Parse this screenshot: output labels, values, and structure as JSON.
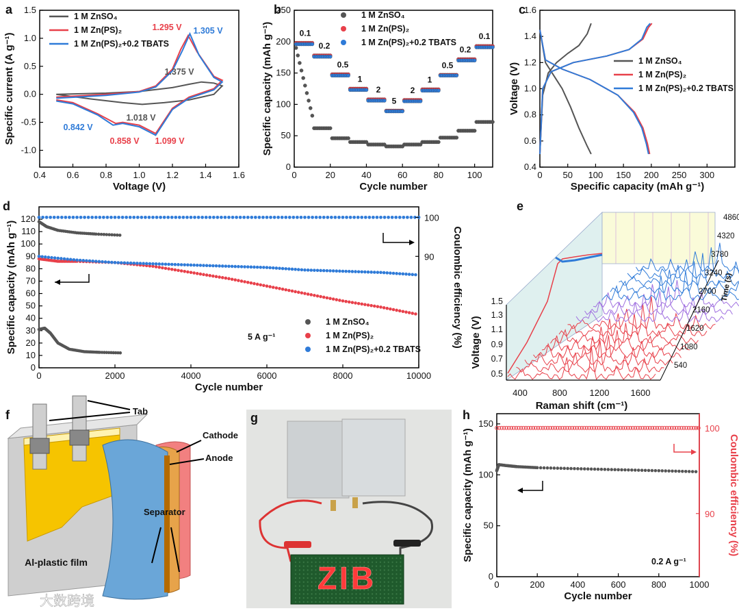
{
  "colors": {
    "gray": "#555555",
    "red": "#e8404a",
    "blue": "#2f7bd8",
    "grid": "#bbbbbb"
  },
  "panel_letters": [
    "a",
    "b",
    "c",
    "d",
    "e",
    "f",
    "g",
    "h"
  ],
  "chart_data": [
    {
      "id": "a",
      "type": "line",
      "xlabel": "Voltage (V)",
      "ylabel": "Specific current (A g⁻¹)",
      "xlim": [
        0.4,
        1.6
      ],
      "ylim": [
        -1.3,
        1.5
      ],
      "xticks": [
        "0.4",
        "0.6",
        "0.8",
        "1.0",
        "1.2",
        "1.4",
        "1.6"
      ],
      "yticks": [
        "-1.0",
        "-0.5",
        "0.0",
        "0.5",
        "1.0",
        "1.5"
      ],
      "legend": [
        "1 M ZnSO₄",
        "1 M Zn(PS)₂",
        "1 M Zn(PS)₂+0.2 TBATS"
      ],
      "annotations": [
        "1.295 V",
        "1.305 V",
        "1.375 V",
        "1.018 V",
        "0.842 V",
        "0.858 V",
        "1.099 V"
      ],
      "series": [
        {
          "name": "1 M ZnSO₄",
          "x": [
            0.5,
            0.8,
            1.0,
            1.2,
            1.3,
            1.375,
            1.45,
            1.5,
            1.45,
            1.3,
            1.15,
            1.018,
            0.9,
            0.7,
            0.5
          ],
          "y": [
            0.0,
            0.02,
            0.05,
            0.12,
            0.18,
            0.22,
            0.2,
            0.15,
            0.0,
            -0.1,
            -0.15,
            -0.18,
            -0.15,
            -0.08,
            0.0
          ]
        },
        {
          "name": "1 M Zn(PS)₂",
          "x": [
            0.5,
            0.8,
            1.0,
            1.1,
            1.2,
            1.25,
            1.295,
            1.35,
            1.45,
            1.5,
            1.45,
            1.3,
            1.2,
            1.099,
            1.0,
            0.9,
            0.858,
            0.75,
            0.6,
            0.5
          ],
          "y": [
            -0.05,
            0.0,
            0.05,
            0.15,
            0.45,
            0.8,
            1.05,
            0.75,
            0.32,
            0.25,
            0.1,
            -0.05,
            -0.25,
            -0.7,
            -0.55,
            -0.5,
            -0.52,
            -0.35,
            -0.15,
            -0.1
          ]
        },
        {
          "name": "1 M Zn(PS)₂+0.2 TBATS",
          "x": [
            0.5,
            0.8,
            1.0,
            1.1,
            1.2,
            1.26,
            1.305,
            1.36,
            1.45,
            1.5,
            1.45,
            1.3,
            1.2,
            1.099,
            1.0,
            0.9,
            0.842,
            0.75,
            0.6,
            0.5
          ],
          "y": [
            -0.07,
            -0.02,
            0.04,
            0.13,
            0.42,
            0.78,
            1.08,
            0.7,
            0.3,
            0.22,
            0.08,
            -0.07,
            -0.27,
            -0.73,
            -0.58,
            -0.52,
            -0.55,
            -0.37,
            -0.17,
            -0.12
          ]
        }
      ]
    },
    {
      "id": "b",
      "type": "scatter",
      "xlabel": "Cycle number",
      "ylabel": "Specific capacity (mAh g⁻¹)",
      "xlim": [
        0,
        110
      ],
      "ylim": [
        0,
        250
      ],
      "xticks": [
        "0",
        "20",
        "40",
        "60",
        "80",
        "100"
      ],
      "yticks": [
        "0",
        "50",
        "100",
        "150",
        "200",
        "250"
      ],
      "legend": [
        "1 M ZnSO₄",
        "1 M Zn(PS)₂",
        "1 M Zn(PS)₂+0.2 TBATS"
      ],
      "rate_labels": [
        "0.1",
        "0.2",
        "0.5",
        "1",
        "2",
        "5",
        "2",
        "1",
        "0.5",
        "0.2",
        "0.1"
      ],
      "segments_gray": [
        70,
        62,
        46,
        40,
        36,
        33,
        36,
        40,
        47,
        58,
        72
      ],
      "segments_red": [
        198,
        178,
        148,
        125,
        108,
        90,
        107,
        124,
        147,
        172,
        193
      ],
      "segments_blue": [
        196,
        176,
        146,
        123,
        106,
        89,
        105,
        122,
        146,
        170,
        191
      ]
    },
    {
      "id": "c",
      "type": "line",
      "xlabel": "Specific capacity (mAh g⁻¹)",
      "ylabel": "Voltage (V)",
      "xlim": [
        0,
        350
      ],
      "ylim": [
        0.4,
        1.6
      ],
      "xticks": [
        "0",
        "50",
        "100",
        "150",
        "200",
        "250",
        "300"
      ],
      "yticks": [
        "0.4",
        "0.6",
        "0.8",
        "1.0",
        "1.2",
        "1.4",
        "1.6"
      ],
      "legend": [
        "1 M ZnSO₄",
        "1 M Zn(PS)₂",
        "1 M Zn(PS)₂+0.2 TBATS"
      ],
      "series": [
        {
          "name": "1 M ZnSO₄ charge",
          "x": [
            0,
            5,
            15,
            30,
            50,
            70,
            85,
            92
          ],
          "y": [
            0.5,
            0.95,
            1.12,
            1.2,
            1.27,
            1.33,
            1.42,
            1.5
          ]
        },
        {
          "name": "1 M ZnSO₄ discharge",
          "x": [
            0,
            10,
            25,
            40,
            55,
            70,
            85,
            92
          ],
          "y": [
            1.45,
            1.2,
            1.1,
            1.0,
            0.86,
            0.7,
            0.56,
            0.5
          ]
        },
        {
          "name": "1 M Zn(PS)₂ charge",
          "x": [
            0,
            5,
            20,
            60,
            120,
            160,
            185,
            195,
            201
          ],
          "y": [
            0.5,
            1.0,
            1.13,
            1.2,
            1.25,
            1.3,
            1.38,
            1.47,
            1.5
          ]
        },
        {
          "name": "1 M Zn(PS)₂ discharge",
          "x": [
            0,
            10,
            40,
            90,
            140,
            170,
            185,
            193,
            197
          ],
          "y": [
            1.45,
            1.22,
            1.15,
            1.07,
            0.95,
            0.82,
            0.7,
            0.58,
            0.5
          ]
        },
        {
          "name": "TBATS charge",
          "x": [
            0,
            5,
            20,
            60,
            120,
            160,
            183,
            192,
            198
          ],
          "y": [
            0.5,
            1.0,
            1.13,
            1.2,
            1.25,
            1.3,
            1.38,
            1.47,
            1.5
          ]
        },
        {
          "name": "TBATS discharge",
          "x": [
            0,
            10,
            40,
            90,
            140,
            168,
            183,
            191,
            195
          ],
          "y": [
            1.45,
            1.22,
            1.15,
            1.07,
            0.95,
            0.82,
            0.7,
            0.58,
            0.5
          ]
        }
      ]
    },
    {
      "id": "d",
      "type": "scatter",
      "xlabel": "Cycle number",
      "ylabel": "Specific capacity (mAh g⁻¹)",
      "y2label": "Coulombic efficiency (%)",
      "xlim": [
        0,
        10000
      ],
      "ylim": [
        0,
        130
      ],
      "xticks": [
        "0",
        "2000",
        "4000",
        "6000",
        "8000",
        "10000"
      ],
      "yticks": [
        "0",
        "10",
        "20",
        "30",
        "40",
        "50",
        "60",
        "70",
        "80",
        "90",
        "100",
        "110",
        "120"
      ],
      "y2ticks": [
        "90",
        "100"
      ],
      "annotation": "5 A g⁻¹",
      "legend": [
        "1 M ZnSO₄",
        "1 M Zn(PS)₂",
        "1 M Zn(PS)₂+0.2 TBATS"
      ],
      "series": [
        {
          "name": "1 M ZnSO₄",
          "x": [
            0,
            150,
            300,
            500,
            800,
            1200,
            1600,
            2200
          ],
          "y": [
            31,
            32,
            28,
            20,
            15,
            13,
            12.5,
            12
          ]
        },
        {
          "name": "1 M Zn(PS)₂",
          "x": [
            0,
            500,
            1000,
            2000,
            3000,
            4000,
            5000,
            6000,
            7000,
            8000,
            9000,
            10000
          ],
          "y": [
            88,
            86,
            86,
            85,
            82,
            77,
            72,
            66,
            60,
            54,
            49,
            43
          ]
        },
        {
          "name": "1 M Zn(PS)₂+0.2 TBATS",
          "x": [
            0,
            1000,
            2000,
            3000,
            4000,
            5000,
            6000,
            7000,
            8000,
            9000,
            10000
          ],
          "y": [
            90,
            87,
            85,
            84,
            83,
            82,
            81,
            79,
            78,
            77,
            75
          ]
        }
      ],
      "ce_series": [
        {
          "name": "1 M ZnSO₄ CE",
          "x": [
            0,
            200,
            500,
            1000,
            1500,
            2200
          ],
          "y": [
            118,
            114,
            111,
            109,
            108,
            107
          ]
        }
      ]
    },
    {
      "id": "e",
      "type": "line",
      "xlabel": "Raman shift (cm⁻¹)",
      "ylabel": "Voltage (V)",
      "zlabel": "Time (s)",
      "xticks": [
        "400",
        "800",
        "1200",
        "1600"
      ],
      "yticks": [
        "0.5",
        "0.7",
        "0.9",
        "1.1",
        "1.3",
        "1.5"
      ],
      "zticks": [
        "540",
        "1080",
        "1620",
        "2160",
        "2700",
        "3240",
        "3780",
        "4320",
        "4860"
      ]
    },
    {
      "id": "h",
      "type": "scatter",
      "xlabel": "Cycle number",
      "ylabel": "Specific capacity (mAh g⁻¹)",
      "y2label": "Coulombic efficiency (%)",
      "xlim": [
        0,
        1000
      ],
      "ylim": [
        0,
        160
      ],
      "xticks": [
        "0",
        "200",
        "400",
        "600",
        "800",
        "1000"
      ],
      "yticks": [
        "0",
        "50",
        "100",
        "150"
      ],
      "y2ticks": [
        "90",
        "100"
      ],
      "annotation": "0.2 A g⁻¹",
      "series": [
        {
          "name": "capacity",
          "x": [
            0,
            10,
            50,
            100,
            200,
            400,
            600,
            800,
            1000
          ],
          "y": [
            104,
            110,
            109,
            108,
            107,
            106,
            105,
            104,
            103
          ]
        },
        {
          "name": "CE",
          "x": [
            0,
            100,
            200,
            300,
            400,
            500,
            600,
            700,
            800,
            900,
            1000
          ],
          "y": [
            100,
            100,
            100,
            100,
            100,
            100,
            100,
            100,
            100,
            100,
            100
          ]
        }
      ]
    }
  ],
  "diagram_f": {
    "labels": [
      "Tab",
      "Cathode",
      "Anode",
      "Separator",
      "Al-plastic film"
    ]
  },
  "photo_g": {
    "display_text": "ZIB"
  },
  "watermark": "大数跨境"
}
